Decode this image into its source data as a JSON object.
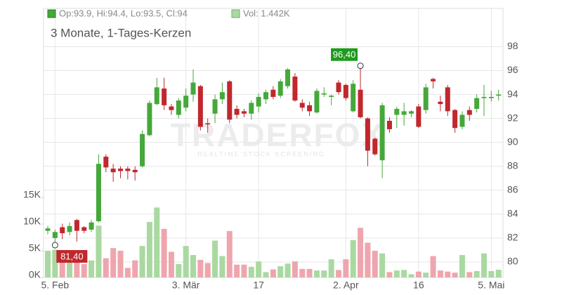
{
  "chart_data": {
    "type": "candlestick",
    "subtitle": "3 Monate, 1-Tages-Kerzen",
    "legend_price": "Op:93.9, Hi:94.4, Lo:93.5, Cl:94",
    "legend_volume": "Vol: 1.442K",
    "watermark": "TRADERFOX",
    "watermark_sub": "REALTIME STOCK SCREENING",
    "categories": [
      null,
      "5. Feb",
      null,
      null,
      null,
      null,
      null,
      null,
      null,
      null,
      null,
      null,
      null,
      null,
      null,
      null,
      null,
      null,
      null,
      "3. Mär",
      null,
      null,
      null,
      null,
      null,
      null,
      null,
      null,
      null,
      "17",
      null,
      null,
      null,
      null,
      null,
      null,
      null,
      null,
      null,
      null,
      null,
      "2. Apr",
      null,
      null,
      null,
      null,
      null,
      null,
      null,
      null,
      null,
      "16",
      null,
      null,
      null,
      null,
      null,
      null,
      null,
      null,
      null,
      "5. Mai",
      null
    ],
    "open": [
      82.6,
      82.0,
      82.9,
      82.5,
      83.5,
      82.9,
      82.7,
      83.4,
      88.8,
      87.8,
      87.8,
      87.8,
      87.7,
      88.0,
      90.6,
      93.2,
      94.5,
      93.0,
      92.3,
      92.9,
      94.0,
      94.7,
      91.6,
      92.4,
      93.6,
      95.1,
      92.8,
      92.6,
      92.4,
      93.0,
      93.6,
      94.4,
      93.9,
      94.7,
      95.5,
      93.3,
      93.1,
      92.5,
      94.0,
      93.8,
      95.0,
      94.8,
      92.6,
      94.4,
      92.0,
      90.3,
      88.5,
      91.8,
      92.3,
      92.3,
      92.4,
      93.0,
      92.7,
      95.3,
      93.4,
      94.6,
      92.7,
      91.3,
      92.7,
      92.8,
      93.7,
      93.7,
      93.9
    ],
    "high": [
      83.0,
      82.7,
      83.2,
      83.3,
      83.6,
      83.0,
      83.5,
      89.0,
      89.0,
      88.2,
      88.0,
      88.0,
      88.0,
      91.0,
      93.5,
      95.4,
      95.4,
      93.2,
      93.7,
      94.5,
      96.1,
      94.8,
      92.0,
      94.0,
      95.0,
      95.2,
      93.1,
      92.8,
      93.5,
      94.1,
      94.4,
      94.7,
      95.3,
      96.2,
      95.8,
      93.6,
      93.4,
      94.5,
      94.6,
      94.0,
      95.2,
      94.9,
      95.2,
      96.4,
      92.1,
      90.4,
      93.3,
      92.1,
      93.0,
      93.3,
      92.7,
      93.2,
      94.9,
      95.4,
      93.9,
      94.8,
      92.8,
      92.6,
      93.0,
      94.0,
      94.8,
      94.3,
      94.4
    ],
    "low": [
      82.3,
      81.4,
      81.9,
      82.2,
      81.7,
      82.4,
      82.5,
      83.3,
      87.5,
      86.7,
      87.0,
      86.9,
      86.8,
      87.9,
      90.5,
      93.1,
      92.7,
      92.3,
      92.0,
      92.6,
      93.4,
      91.0,
      90.8,
      91.6,
      93.2,
      91.6,
      92.0,
      92.1,
      91.9,
      92.5,
      93.2,
      93.6,
      93.7,
      94.5,
      93.4,
      92.6,
      92.2,
      92.4,
      93.8,
      93.1,
      94.0,
      93.5,
      92.5,
      92.0,
      88.0,
      88.9,
      87.0,
      90.8,
      91.2,
      91.4,
      92.1,
      91.2,
      92.4,
      94.5,
      92.6,
      92.2,
      90.8,
      91.1,
      91.8,
      92.5,
      92.2,
      93.4,
      93.5
    ],
    "close": [
      82.8,
      82.5,
      82.4,
      83.0,
      82.6,
      82.6,
      83.3,
      88.2,
      87.9,
      87.5,
      87.6,
      87.6,
      87.5,
      90.7,
      93.3,
      94.6,
      93.1,
      92.7,
      93.5,
      93.9,
      95.0,
      91.3,
      91.5,
      93.6,
      94.2,
      91.9,
      92.3,
      92.4,
      93.3,
      93.8,
      94.2,
      93.8,
      95.1,
      96.1,
      93.5,
      92.9,
      92.6,
      94.3,
      94.1,
      93.9,
      94.2,
      93.7,
      94.9,
      92.1,
      89.3,
      89.0,
      93.1,
      91.1,
      92.8,
      92.6,
      92.6,
      91.3,
      94.6,
      95.1,
      93.2,
      92.6,
      91.2,
      92.3,
      92.3,
      93.7,
      93.8,
      93.8,
      94.0
    ],
    "volume": [
      5000,
      5200,
      3500,
      3000,
      4500,
      2500,
      3200,
      9700,
      3600,
      5500,
      5000,
      1800,
      3200,
      5900,
      10400,
      13100,
      9100,
      4800,
      2500,
      5900,
      4200,
      3300,
      2700,
      6900,
      4000,
      8700,
      2400,
      2400,
      2000,
      3000,
      1000,
      1500,
      2100,
      2600,
      3000,
      1600,
      1600,
      1300,
      1300,
      3400,
      1400,
      3400,
      7000,
      9300,
      6500,
      5000,
      4500,
      1000,
      1300,
      1400,
      600,
      1100,
      900,
      4000,
      1300,
      1100,
      900,
      4200,
      1000,
      1200,
      4500,
      1200,
      1442
    ],
    "up_color": "#45a83a",
    "down_color": "#c1272d",
    "up_volume_color": "#a9d9a1",
    "down_volume_color": "#efa5ad",
    "ylim": [
      78.7,
      101.2
    ],
    "yticks": [
      80,
      82,
      84,
      86,
      88,
      90,
      92,
      94,
      96,
      98
    ],
    "y2lim": [
      0,
      50400
    ],
    "y2ticks": [
      {
        "value": 0,
        "label": "0K"
      },
      {
        "value": 5000,
        "label": "5K"
      },
      {
        "value": 10000,
        "label": "10K"
      },
      {
        "value": 15000,
        "label": "15K"
      }
    ],
    "max_label": {
      "value": 96.4,
      "label": "96,40",
      "color": "#1f9a1f"
    },
    "min_label": {
      "value": 81.4,
      "label": "81,40",
      "color": "#c1272d"
    },
    "grid": true
  }
}
